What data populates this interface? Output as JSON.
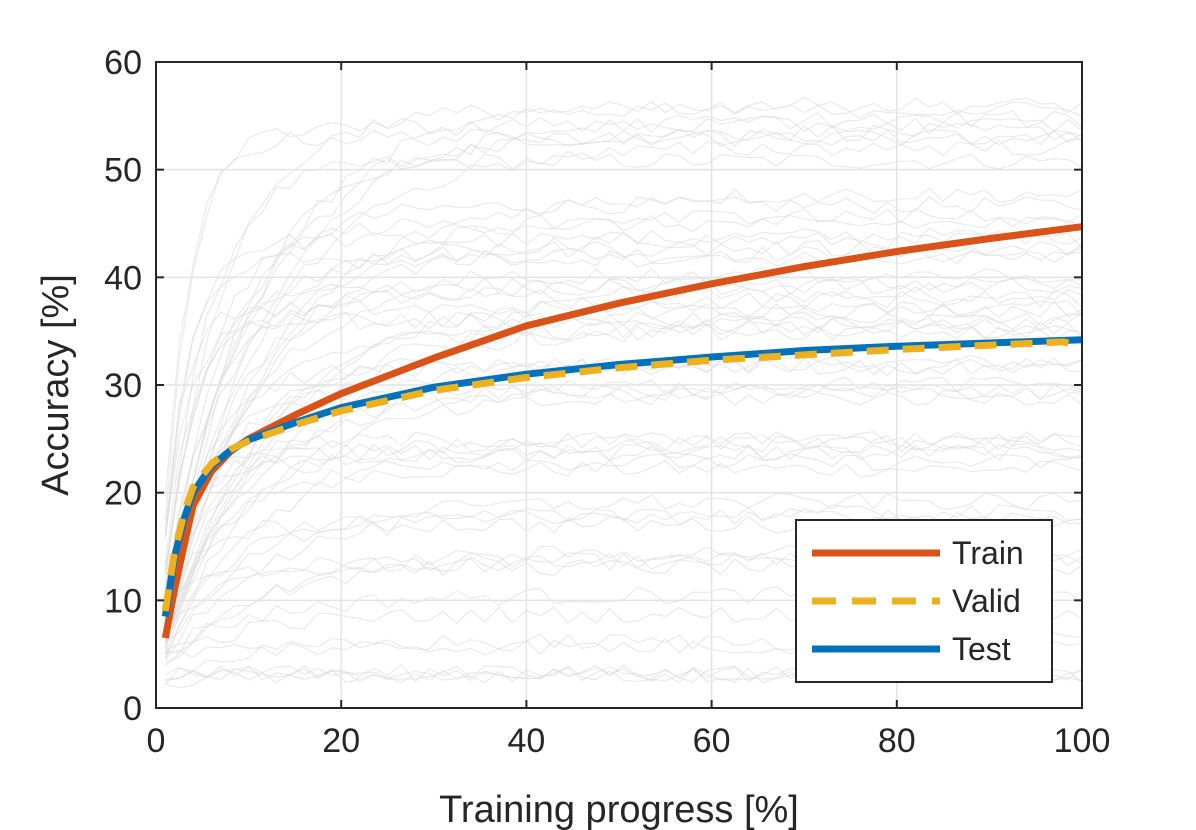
{
  "chart_data": {
    "type": "line",
    "xlabel": "Training progress [%]",
    "ylabel": "Accuracy [%]",
    "xlim": [
      0,
      100
    ],
    "ylim": [
      0,
      60
    ],
    "xticks": [
      0,
      20,
      40,
      60,
      80,
      100
    ],
    "yticks": [
      0,
      10,
      20,
      30,
      40,
      50,
      60
    ],
    "xtick_labels": [
      "0",
      "20",
      "40",
      "60",
      "80",
      "100"
    ],
    "ytick_labels": [
      "0",
      "10",
      "20",
      "30",
      "40",
      "50",
      "60"
    ],
    "grid": true,
    "legend_position": "bottom-right",
    "background_runs": {
      "description_color": "#d9d9d9",
      "count_shown": 60
    },
    "series": [
      {
        "name": "Train",
        "color": "#d95319",
        "style": "solid",
        "x": [
          1,
          2,
          3,
          4,
          6,
          8,
          10,
          15,
          20,
          30,
          40,
          50,
          60,
          70,
          80,
          90,
          100
        ],
        "y": [
          6.5,
          11,
          15,
          18.8,
          22,
          23.8,
          25,
          27.2,
          29.2,
          32.5,
          35.5,
          37.6,
          39.4,
          41,
          42.4,
          43.6,
          44.7
        ]
      },
      {
        "name": "Valid",
        "color": "#edb120",
        "style": "dashed",
        "x": [
          1,
          2,
          3,
          4,
          6,
          8,
          10,
          15,
          20,
          30,
          40,
          50,
          60,
          70,
          80,
          90,
          98,
          100
        ],
        "y": [
          9,
          14.5,
          18,
          20.5,
          22.7,
          24,
          24.8,
          26.3,
          27.6,
          29.5,
          30.7,
          31.6,
          32.3,
          32.8,
          33.3,
          33.7,
          34.0,
          33.5
        ]
      },
      {
        "name": "Test",
        "color": "#0072bd",
        "style": "solid",
        "x": [
          1,
          2,
          3,
          4,
          6,
          8,
          10,
          15,
          20,
          30,
          40,
          50,
          60,
          70,
          80,
          90,
          100
        ],
        "y": [
          8.5,
          14,
          17.5,
          20,
          22.5,
          23.9,
          24.9,
          26.5,
          27.9,
          29.8,
          31,
          31.9,
          32.6,
          33.2,
          33.6,
          33.9,
          34.2
        ]
      }
    ]
  }
}
